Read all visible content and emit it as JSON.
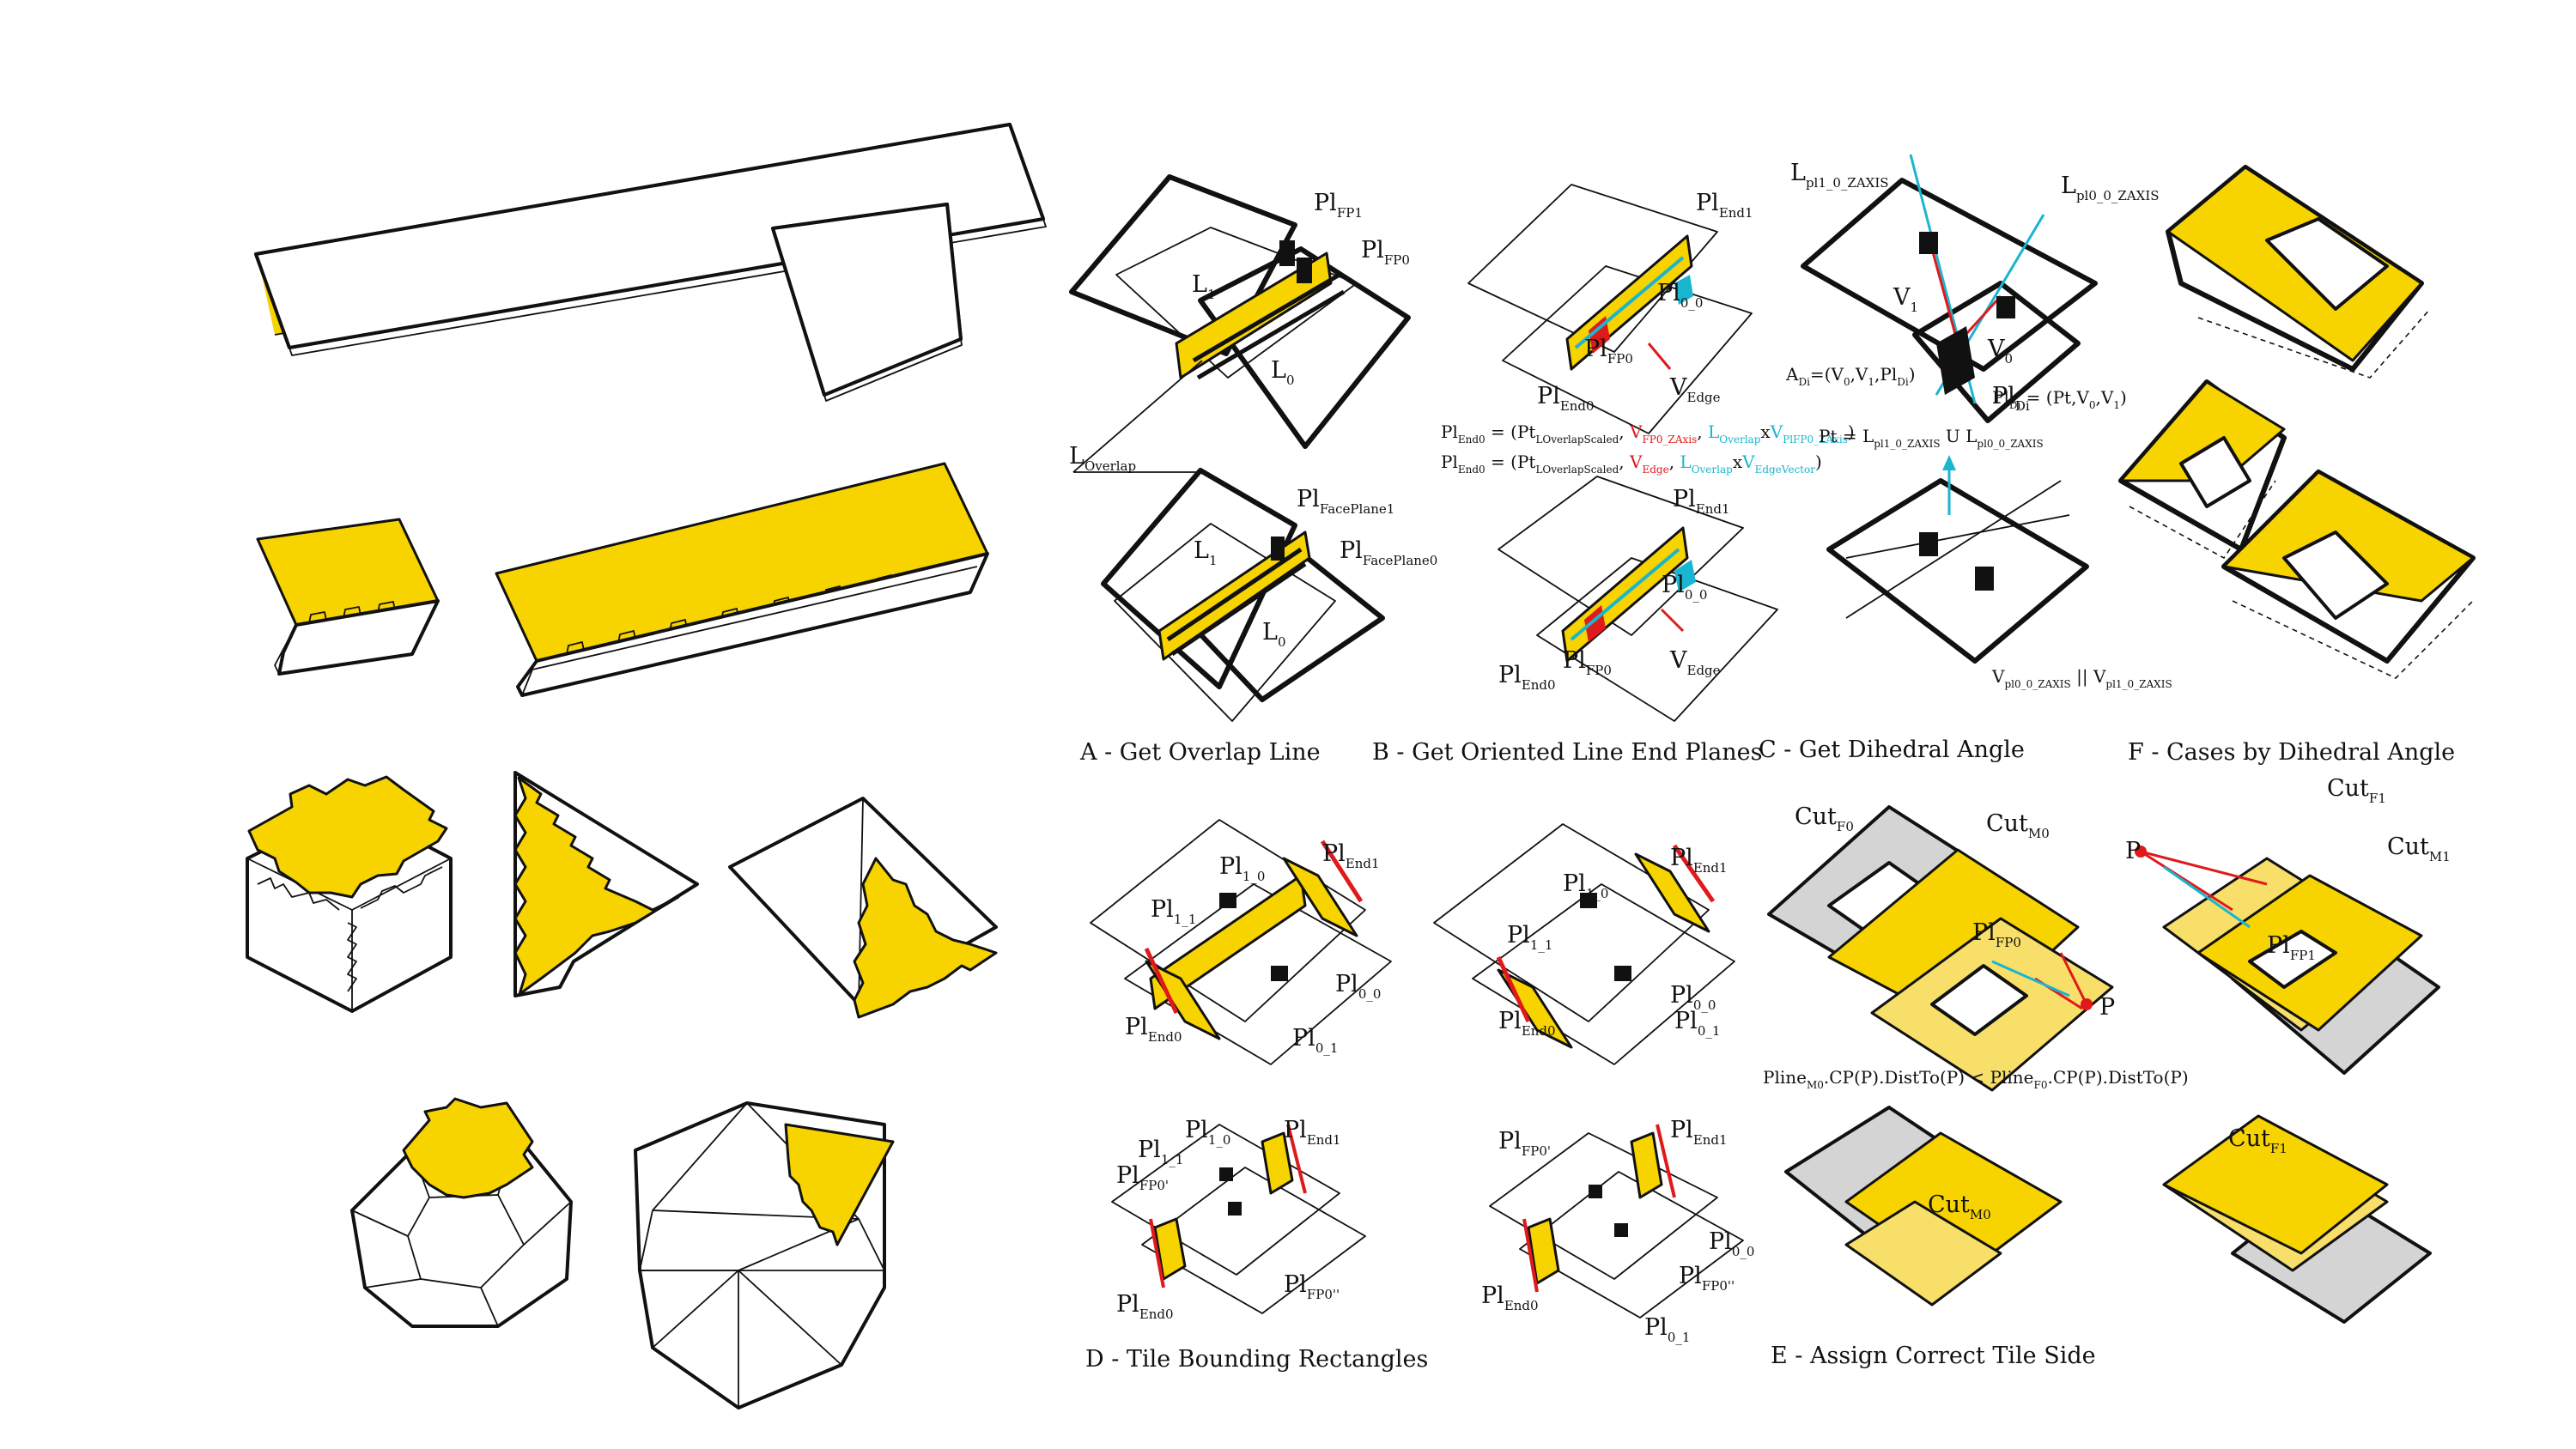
{
  "captions": {
    "A": "A - Get Overlap Line",
    "B": "B - Get Oriented Line End Planes",
    "C": "C - Get Dihedral Angle",
    "F": "F - Cases by Dihedral Angle",
    "D": "D - Tile Bounding Rectangles",
    "E": "E - Assign Correct Tile Side"
  },
  "labels": {
    "A": [
      {
        "base": "Pl",
        "sub": "FP1"
      },
      {
        "base": "Pl",
        "sub": "FP0"
      },
      {
        "base": "L",
        "sub": "1"
      },
      {
        "base": "L",
        "sub": "0"
      },
      {
        "base": "L",
        "sub": "Overlap"
      },
      {
        "base": "Pl",
        "sub": "FacePlane1"
      },
      {
        "base": "Pl",
        "sub": "FacePlane0"
      },
      {
        "base": "L",
        "sub": "1"
      },
      {
        "base": "L",
        "sub": "0"
      }
    ],
    "B": [
      {
        "base": "Pl",
        "sub": "End1"
      },
      {
        "base": "Pl",
        "sub": "0_0"
      },
      {
        "base": "Pl",
        "sub": "FP0"
      },
      {
        "base": "Pl",
        "sub": "End0"
      },
      {
        "base": "V",
        "sub": "Edge"
      },
      {
        "base": "Pl",
        "sub": "End1"
      },
      {
        "base": "Pl",
        "sub": "0_0"
      },
      {
        "base": "Pl",
        "sub": "FP0"
      },
      {
        "base": "Pl",
        "sub": "End0"
      },
      {
        "base": "V",
        "sub": "Edge"
      }
    ],
    "C": [
      {
        "base": "L",
        "sub": "pl1_0_ZAXIS"
      },
      {
        "base": "L",
        "sub": "pl0_0_ZAXIS"
      },
      {
        "base": "V",
        "sub": "1"
      },
      {
        "base": "V",
        "sub": "0"
      },
      {
        "base": "Pl",
        "sub": "Di"
      }
    ],
    "D": [
      {
        "base": "Pl",
        "sub": "End1"
      },
      {
        "base": "Pl",
        "sub": "1_0"
      },
      {
        "base": "Pl",
        "sub": "1_1"
      },
      {
        "base": "Pl",
        "sub": "0_0"
      },
      {
        "base": "Pl",
        "sub": "End0"
      },
      {
        "base": "Pl",
        "sub": "0_1"
      },
      {
        "base": "Pl",
        "sub": "End1"
      },
      {
        "base": "Pl",
        "sub": "1_0"
      },
      {
        "base": "Pl",
        "sub": "1_1"
      },
      {
        "base": "Pl",
        "sub": "0_0"
      },
      {
        "base": "Pl",
        "sub": "End0"
      },
      {
        "base": "Pl",
        "sub": "0_1"
      },
      {
        "base": "Pl",
        "sub": "1_0"
      },
      {
        "base": "Pl",
        "sub": "End1"
      },
      {
        "base": "Pl",
        "sub": "1_1"
      },
      {
        "base": "Pl",
        "sub": "FP0'"
      },
      {
        "base": "Pl",
        "sub": "End0"
      },
      {
        "base": "Pl",
        "sub": "FP0''"
      },
      {
        "base": "Pl",
        "sub": "FP0'"
      },
      {
        "base": "Pl",
        "sub": "End1"
      },
      {
        "base": "Pl",
        "sub": "0_0"
      },
      {
        "base": "Pl",
        "sub": "End0"
      },
      {
        "base": "Pl",
        "sub": "FP0''"
      },
      {
        "base": "Pl",
        "sub": "0_1"
      }
    ],
    "E": [
      {
        "base": "Cut",
        "sub": "F0"
      },
      {
        "base": "Cut",
        "sub": "M0"
      },
      {
        "base": "Pl",
        "sub": "FP0"
      },
      {
        "base": "P",
        "sub": ""
      },
      {
        "base": "Cut",
        "sub": "M0"
      }
    ],
    "F": [
      {
        "base": "P",
        "sub": ""
      },
      {
        "base": "Cut",
        "sub": "F1"
      },
      {
        "base": "Cut",
        "sub": "M1"
      },
      {
        "base": "Pl",
        "sub": "FP1"
      },
      {
        "base": "Cut",
        "sub": "F1"
      }
    ]
  },
  "equations": {
    "B1": [
      {
        "t": "Pl",
        "s": "End0"
      },
      {
        "t": " = (Pt",
        "s": "LOverlapScaled"
      },
      {
        "t": ", "
      },
      {
        "t": "V",
        "s": "FP0_ZAxis",
        "c": "red"
      },
      {
        "t": ", "
      },
      {
        "t": "L",
        "s": "Overlap",
        "c": "cyan"
      },
      {
        "t": "x"
      },
      {
        "t": "V",
        "s": "PlFP0_ZAxis",
        "c": "cyan"
      },
      {
        "t": ")"
      }
    ],
    "B2": [
      {
        "t": "Pl",
        "s": "End0"
      },
      {
        "t": " = (Pt",
        "s": "LOverlapScaled"
      },
      {
        "t": ", "
      },
      {
        "t": "V",
        "s": "Edge",
        "c": "red"
      },
      {
        "t": ", "
      },
      {
        "t": "L",
        "s": "Overlap",
        "c": "cyan"
      },
      {
        "t": "x"
      },
      {
        "t": "V",
        "s": "EdgeVector",
        "c": "cyan"
      },
      {
        "t": ")"
      }
    ],
    "C1": [
      {
        "t": "A",
        "s": "Di"
      },
      {
        "t": "=(V"
      },
      {
        "t": "",
        "s": "0"
      },
      {
        "t": ",V"
      },
      {
        "t": "",
        "s": "1"
      },
      {
        "t": ",Pl"
      },
      {
        "t": "",
        "s": "Di"
      },
      {
        "t": ")"
      }
    ],
    "C2": [
      {
        "t": "Pl",
        "s": "Di"
      },
      {
        "t": " = (Pt,V"
      },
      {
        "t": "",
        "s": "0"
      },
      {
        "t": ",V"
      },
      {
        "t": "",
        "s": "1"
      },
      {
        "t": ")"
      }
    ],
    "C3": [
      {
        "t": "Pt = L",
        "s": "pl1_0_ZAXIS"
      },
      {
        "t": " U L",
        "s": "pl0_0_ZAXIS"
      }
    ],
    "C4": [
      {
        "t": "V",
        "s": "pl0_0_ZAXIS"
      },
      {
        "t": " || V",
        "s": "pl1_0_ZAXIS"
      }
    ],
    "E1": [
      {
        "t": "Pline",
        "s": "M0"
      },
      {
        "t": ".CP(P).DistTo(P) < Pline",
        "s": "F0"
      },
      {
        "t": ".CP(P).DistTo(P)"
      }
    ]
  },
  "colors": {
    "yellow": "#f7d300",
    "light_yellow": "#f8df6a",
    "gray": "#d4d4d4",
    "red": "#e0191b",
    "cyan": "#1ab5cf",
    "ink": "#111111"
  }
}
